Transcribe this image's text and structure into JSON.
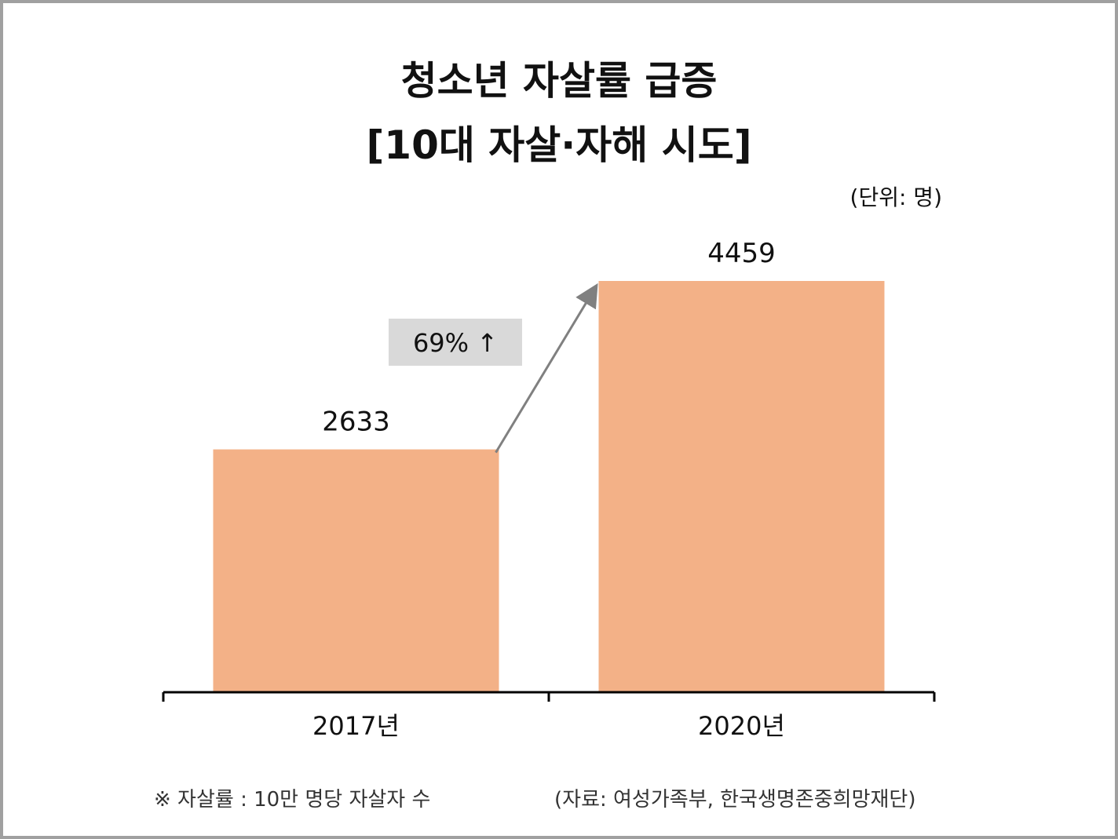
{
  "title_line1": "청소년 자살률 급증",
  "title_line2": "[10대 자살·자해 시도]",
  "unit_label": "(단위: 명)",
  "footnote_left": "※ 자살률 : 10만 명당 자살자 수",
  "footnote_right": "(자료: 여성가족부, 한국생명존중희망재단)",
  "annotation": {
    "label": "69% ↑"
  },
  "colors": {
    "bar": "#f3b187",
    "axis": "#000000",
    "arrow": "#808080",
    "annotation_bg": "#d9d9d9"
  },
  "chart_data": {
    "type": "bar",
    "title": "청소년 자살률 급증 [10대 자살·자해 시도]",
    "categories": [
      "2017년",
      "2020년"
    ],
    "values": [
      2633,
      4459
    ],
    "data_labels": [
      "2633",
      "4459"
    ],
    "ylabel": "",
    "xlabel": "",
    "ylim": [
      0,
      5000
    ],
    "grid": false,
    "legend": "none",
    "annotations": [
      {
        "text": "69% ↑",
        "from_category": "2017년",
        "to_category": "2020년"
      }
    ]
  }
}
